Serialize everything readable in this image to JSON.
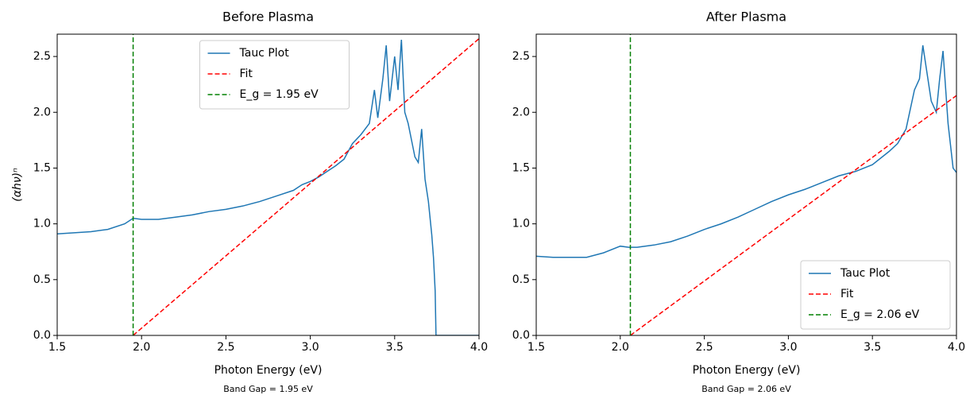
{
  "chart_data": [
    {
      "type": "line",
      "title": "Before Plasma",
      "xlabel": "Photon Energy (eV)",
      "ylabel": "(αhν)ⁿ",
      "note": "Band Gap = 1.95 eV",
      "xlim": [
        1.5,
        4.0
      ],
      "ylim": [
        0,
        2.7
      ],
      "xticks": [
        1.5,
        {
          "value": 2,
          "label": "2.0"
        },
        2.5,
        {
          "value": 3,
          "label": "3.0"
        },
        3.5,
        {
          "value": 4,
          "label": "4.0"
        }
      ],
      "yticks": [
        {
          "value": 0,
          "label": "0.0"
        },
        0.5,
        {
          "value": 1,
          "label": "1.0"
        },
        1.5,
        {
          "value": 2,
          "label": "2.0"
        },
        2.5
      ],
      "legend": "upper center",
      "grid": false,
      "series": [
        {
          "name": "Tauc Plot",
          "color": "#1f77b4",
          "dash": "solid",
          "x": [
            1.5,
            1.6,
            1.7,
            1.8,
            1.9,
            1.95,
            2.0,
            2.1,
            2.2,
            2.3,
            2.4,
            2.5,
            2.6,
            2.7,
            2.8,
            2.9,
            2.95,
            3.0,
            3.05,
            3.1,
            3.15,
            3.2,
            3.25,
            3.3,
            3.35,
            3.38,
            3.4,
            3.43,
            3.45,
            3.47,
            3.5,
            3.52,
            3.54,
            3.56,
            3.58,
            3.6,
            3.62,
            3.64,
            3.66,
            3.68,
            3.7,
            3.72,
            3.73,
            3.74,
            3.745,
            3.8,
            4.0
          ],
          "values": [
            0.91,
            0.92,
            0.93,
            0.95,
            1.0,
            1.05,
            1.04,
            1.04,
            1.06,
            1.08,
            1.11,
            1.13,
            1.16,
            1.2,
            1.25,
            1.3,
            1.35,
            1.38,
            1.42,
            1.47,
            1.52,
            1.58,
            1.72,
            1.8,
            1.9,
            2.2,
            1.95,
            2.3,
            2.6,
            2.1,
            2.5,
            2.2,
            2.65,
            2.0,
            1.9,
            1.75,
            1.6,
            1.55,
            1.85,
            1.4,
            1.2,
            0.9,
            0.7,
            0.4,
            0,
            0,
            0
          ]
        },
        {
          "name": "Fit",
          "color": "#ff0000",
          "dash": "dashed",
          "x": [
            1.95,
            4.0
          ],
          "values": [
            0,
            2.66
          ]
        },
        {
          "name": "E_g = 1.95 eV",
          "color": "#008000",
          "dash": "dashed",
          "x": [
            1.95,
            1.95
          ],
          "values": [
            0,
            2.7
          ]
        }
      ]
    },
    {
      "type": "line",
      "title": "After Plasma",
      "xlabel": "Photon Energy (eV)",
      "note": "Band Gap = 2.06 eV",
      "xlim": [
        1.5,
        4.0
      ],
      "ylim": [
        0,
        2.7
      ],
      "xticks": [
        1.5,
        {
          "value": 2,
          "label": "2.0"
        },
        2.5,
        {
          "value": 3,
          "label": "3.0"
        },
        3.5,
        {
          "value": 4,
          "label": "4.0"
        }
      ],
      "yticks": [
        {
          "value": 0,
          "label": "0.0"
        },
        0.5,
        {
          "value": 1,
          "label": "1.0"
        },
        1.5,
        {
          "value": 2,
          "label": "2.0"
        },
        2.5
      ],
      "legend": "lower right",
      "grid": false,
      "series": [
        {
          "name": "Tauc Plot",
          "color": "#1f77b4",
          "dash": "solid",
          "x": [
            1.5,
            1.6,
            1.7,
            1.8,
            1.9,
            2.0,
            2.05,
            2.1,
            2.2,
            2.3,
            2.4,
            2.5,
            2.6,
            2.7,
            2.8,
            2.9,
            3.0,
            3.1,
            3.2,
            3.3,
            3.4,
            3.45,
            3.5,
            3.6,
            3.65,
            3.7,
            3.75,
            3.78,
            3.8,
            3.82,
            3.85,
            3.88,
            3.9,
            3.92,
            3.95,
            3.98,
            4.0
          ],
          "values": [
            0.71,
            0.7,
            0.7,
            0.7,
            0.74,
            0.8,
            0.79,
            0.79,
            0.81,
            0.84,
            0.89,
            0.95,
            1.0,
            1.06,
            1.13,
            1.2,
            1.26,
            1.31,
            1.37,
            1.43,
            1.47,
            1.5,
            1.53,
            1.65,
            1.72,
            1.85,
            2.2,
            2.3,
            2.6,
            2.4,
            2.1,
            2.0,
            2.3,
            2.55,
            1.9,
            1.5,
            1.46
          ]
        },
        {
          "name": "Fit",
          "color": "#ff0000",
          "dash": "dashed",
          "x": [
            2.06,
            4.0
          ],
          "values": [
            0,
            2.15
          ]
        },
        {
          "name": "E_g = 2.06 eV",
          "color": "#008000",
          "dash": "dashed",
          "x": [
            2.06,
            2.06
          ],
          "values": [
            0,
            2.7
          ]
        }
      ]
    }
  ]
}
